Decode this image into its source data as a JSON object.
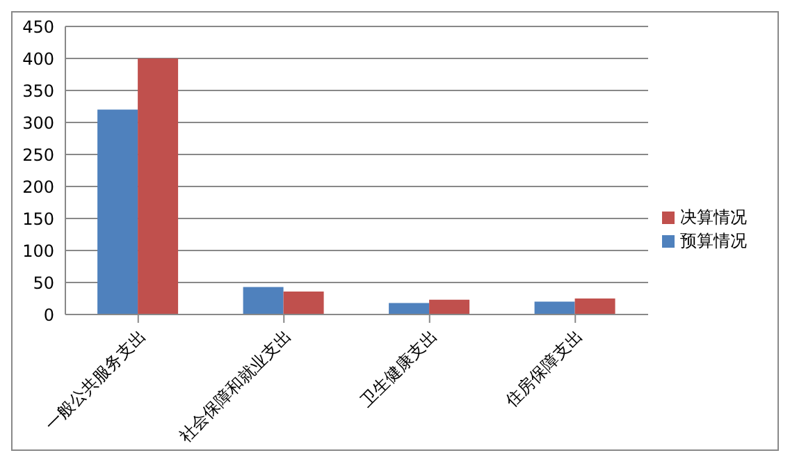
{
  "chart_data": {
    "type": "bar",
    "categories": [
      "一般公共服务支出",
      "社会保障和就业支出",
      "卫生健康支出",
      "住房保障支出"
    ],
    "series": [
      {
        "name": "预算情况",
        "color": "#4f81bd",
        "values": [
          320,
          43,
          18,
          20
        ]
      },
      {
        "name": "决算情况",
        "color": "#c0504d",
        "values": [
          400,
          36,
          23,
          25
        ]
      }
    ],
    "ylim": [
      0,
      450
    ],
    "yticks": [
      0,
      50,
      100,
      150,
      200,
      250,
      300,
      350,
      400,
      450
    ],
    "grid": "y",
    "legend": "right"
  }
}
